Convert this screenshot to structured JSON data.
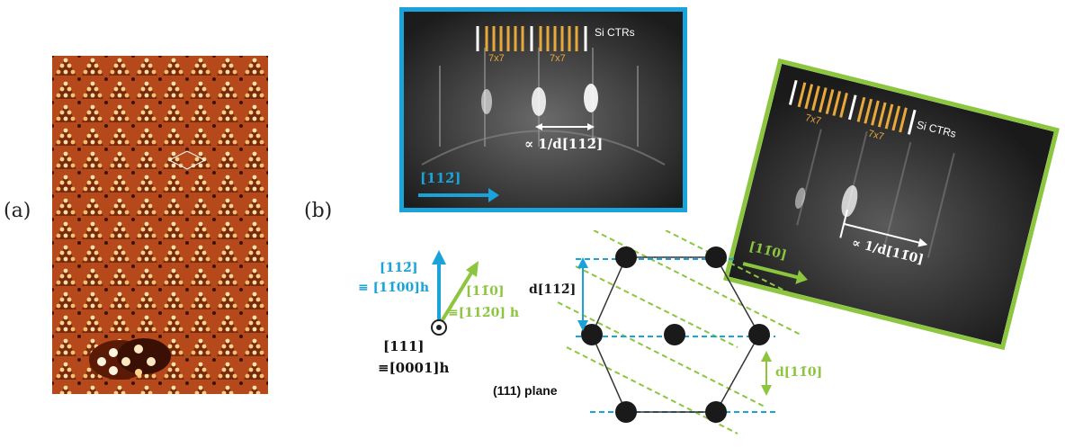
{
  "labels": {
    "panel_a": "(a)",
    "panel_b": "(b)"
  },
  "rheed_top": {
    "si_ctrs": "Si CTRs",
    "seven_left": "7x7",
    "seven_right": "7x7",
    "spacing": "∝ 1/d[112̄]",
    "direction": "[112̄]"
  },
  "rheed_right": {
    "si_ctrs": "Si CTRs",
    "seven_left": "7x7",
    "seven_right": "7x7",
    "spacing": "∝ 1/d[11̄0]",
    "direction": "[11̄0]"
  },
  "axes": {
    "blue_line1": "[112̄]",
    "blue_line2": "≡ [11̄00]h",
    "green_line1": "[11̄0]",
    "green_line2": "≡[112̄0] h",
    "center_line1": "[111]",
    "center_line2": "≡[0001]h"
  },
  "lattice": {
    "d_blue": "d[112̄]",
    "d_green": "d[11̄0]",
    "plane": "(111) plane"
  },
  "colors": {
    "blue": "#1aa3d8",
    "green": "#8cc63f",
    "orange": "#e8a93a",
    "stm_base": "#b5491c"
  }
}
